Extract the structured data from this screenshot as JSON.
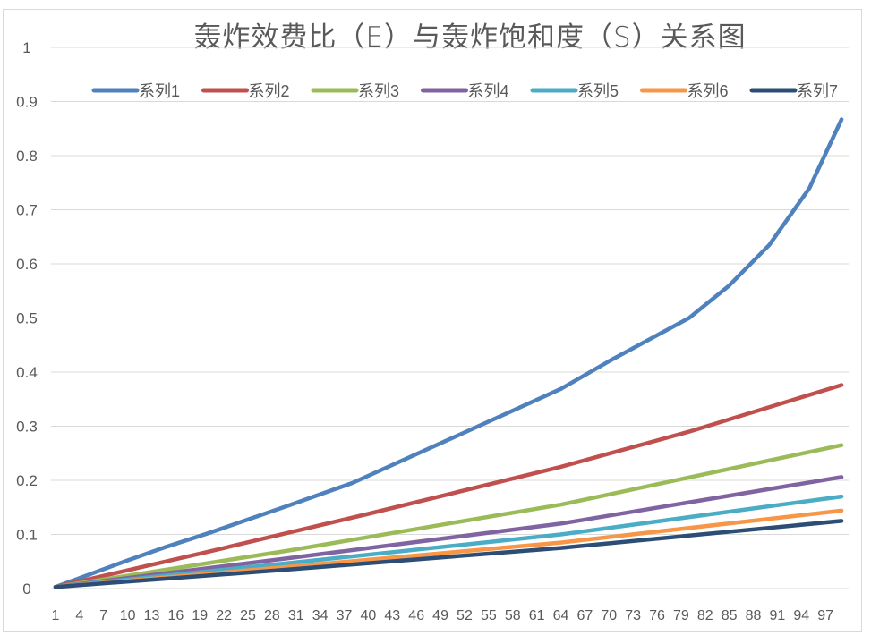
{
  "chart_data": {
    "type": "line",
    "title": "轰炸效费比（E）与轰炸饱和度（S）关系图",
    "xlabel": "",
    "ylabel": "",
    "x_range": [
      1,
      99
    ],
    "x_tick_labels": [
      "1",
      "4",
      "7",
      "10",
      "13",
      "16",
      "19",
      "22",
      "25",
      "28",
      "31",
      "34",
      "37",
      "40",
      "43",
      "46",
      "49",
      "52",
      "55",
      "58",
      "61",
      "64",
      "67",
      "70",
      "73",
      "76",
      "79",
      "82",
      "85",
      "88",
      "91",
      "94",
      "97"
    ],
    "ylim": [
      0,
      1
    ],
    "y_tick_labels": [
      "0",
      "0.1",
      "0.2",
      "0.3",
      "0.4",
      "0.5",
      "0.6",
      "0.7",
      "0.8",
      "0.9",
      "1"
    ],
    "grid": true,
    "legend_position": "top",
    "series": [
      {
        "name": "系列1",
        "color": "#4F81BD",
        "x": [
          1,
          10,
          15,
          20,
          30,
          38,
          50,
          64,
          70,
          80,
          85,
          90,
          95,
          99
        ],
        "values": [
          0.003,
          0.052,
          0.078,
          0.102,
          0.153,
          0.195,
          0.275,
          0.369,
          0.42,
          0.5,
          0.56,
          0.635,
          0.74,
          0.867
        ]
      },
      {
        "name": "系列2",
        "color": "#C0504D",
        "x": [
          1,
          20,
          40,
          64,
          80,
          99
        ],
        "values": [
          0.003,
          0.068,
          0.138,
          0.225,
          0.29,
          0.376
        ]
      },
      {
        "name": "系列3",
        "color": "#9BBB59",
        "x": [
          1,
          30,
          64,
          99
        ],
        "values": [
          0.003,
          0.07,
          0.155,
          0.265
        ]
      },
      {
        "name": "系列4",
        "color": "#8064A2",
        "x": [
          1,
          30,
          64,
          99
        ],
        "values": [
          0.003,
          0.056,
          0.12,
          0.206
        ]
      },
      {
        "name": "系列5",
        "color": "#4BACC6",
        "x": [
          1,
          30,
          64,
          99
        ],
        "values": [
          0.003,
          0.047,
          0.1,
          0.17
        ]
      },
      {
        "name": "系列6",
        "color": "#F79646",
        "x": [
          1,
          30,
          64,
          99
        ],
        "values": [
          0.003,
          0.04,
          0.085,
          0.144
        ]
      },
      {
        "name": "系列7",
        "color": "#2C4D75",
        "x": [
          1,
          30,
          64,
          99
        ],
        "values": [
          0.003,
          0.035,
          0.075,
          0.125
        ]
      }
    ]
  }
}
